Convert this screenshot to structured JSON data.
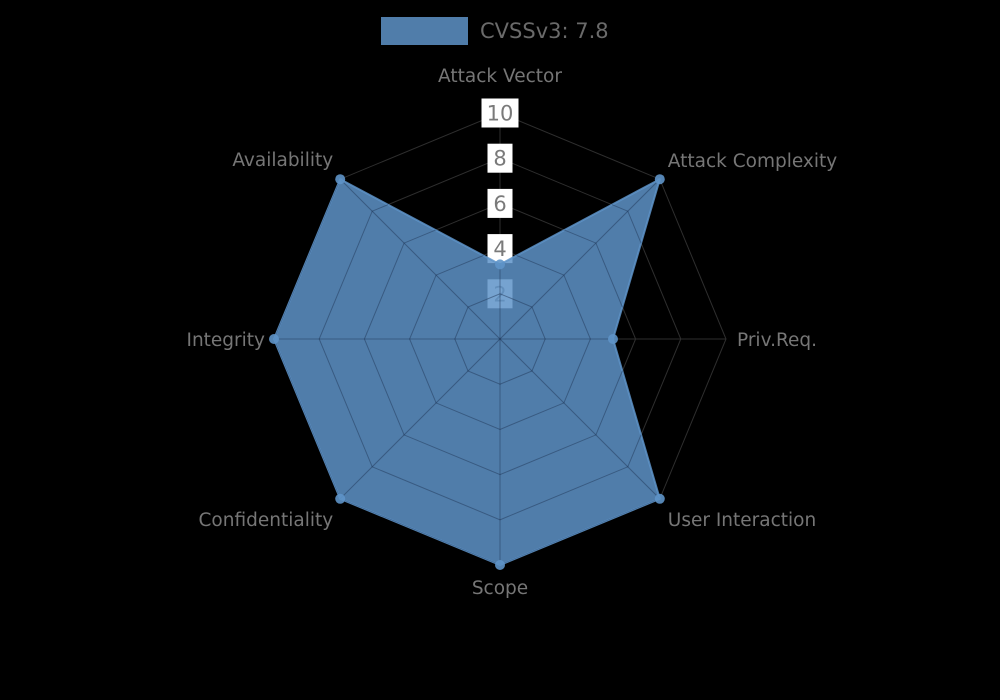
{
  "legend": {
    "label": "CVSSv3: 7.8",
    "swatch_color": "#5e93c8"
  },
  "chart_data": {
    "type": "radar",
    "title": "",
    "categories": [
      "Attack Vector",
      "Attack Complexity",
      "Priv.Req.",
      "User Interaction",
      "Scope",
      "Confidentiality",
      "Integrity",
      "Availability"
    ],
    "series": [
      {
        "name": "CVSSv3: 7.8",
        "values": [
          3.3,
          10,
          5,
          10,
          10,
          10,
          10,
          10
        ]
      }
    ],
    "radial_ticks": [
      10,
      8,
      6,
      4,
      2
    ],
    "range": [
      0,
      10
    ],
    "grid": "octagonal-web",
    "legend_position": "top-center",
    "colors": {
      "background": "#000000",
      "series_fill": "#5e93c8",
      "series_fill_opacity": 0.85,
      "grid_outer": "#2e2e2e",
      "grid_inner": "rgba(20,40,70,0.45)",
      "axis_label": "#767676",
      "legend_text": "#6a6a6a",
      "tick_text": "#7a7a7a",
      "tick_box": "#ffffff"
    }
  }
}
